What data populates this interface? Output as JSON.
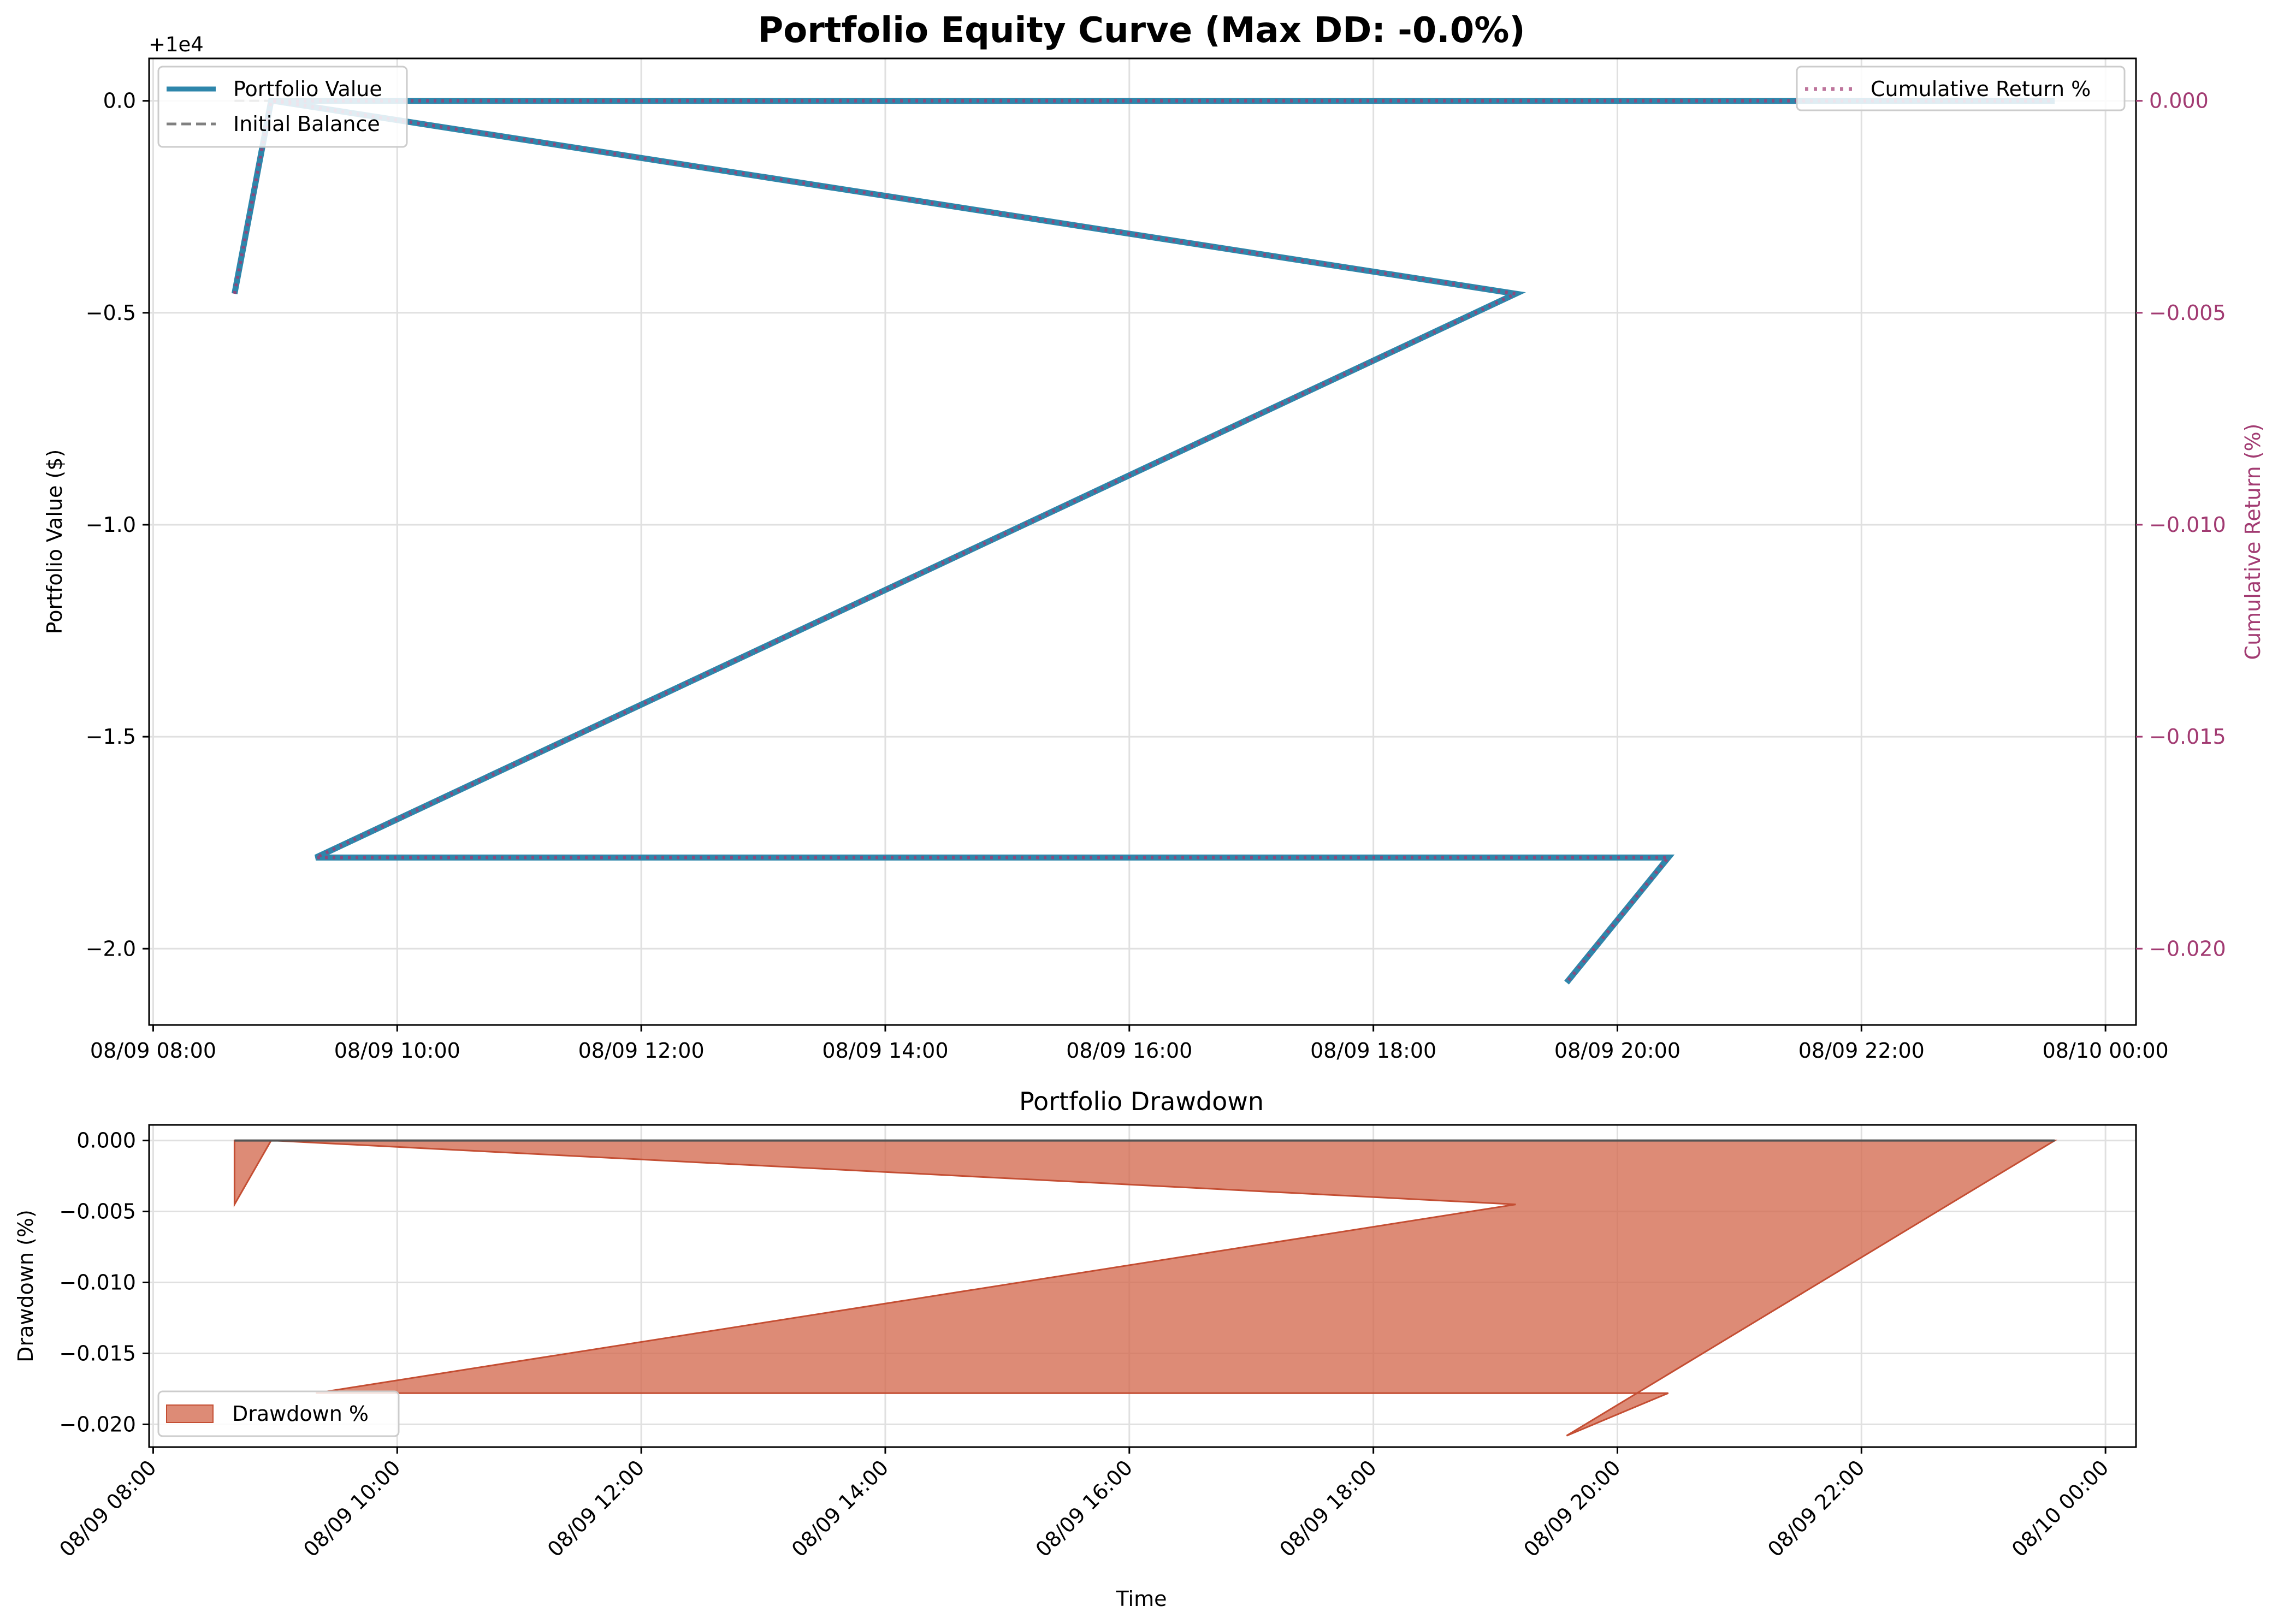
{
  "colors": {
    "portfolio": "#2E86AB",
    "cumulative_return": "#A23B72",
    "initial_balance": "#808080",
    "drawdown_fill": "#D46A4F",
    "grid": "#E0E0E0",
    "axis": "#000000"
  },
  "chart_data": [
    {
      "type": "line",
      "title": "Portfolio Equity Curve (Max DD: -0.0%)",
      "ylabel": "Portfolio Value ($)",
      "y2label": "Cumulative Return (%)",
      "offset_label": "+1e4",
      "ylim": [
        -2.18,
        0.1
      ],
      "y2lim": [
        -0.0218,
        0.001
      ],
      "xlim": [
        "08/09 07:58",
        "08/10 00:15"
      ],
      "x_tick_labels": [
        "08/09 08:00",
        "08/09 10:00",
        "08/09 12:00",
        "08/09 14:00",
        "08/09 16:00",
        "08/09 18:00",
        "08/09 20:00",
        "08/09 22:00",
        "08/10 00:00"
      ],
      "x_ticks": [
        "08/09 08:00",
        "08/09 10:00",
        "08/09 12:00",
        "08/09 14:00",
        "08/09 16:00",
        "08/09 18:00",
        "08/09 20:00",
        "08/09 22:00",
        "08/10 00:00"
      ],
      "y_tick_labels": [
        "0.0",
        "−0.5",
        "−1.0",
        "−1.5",
        "−2.0"
      ],
      "y_ticks": [
        0.0,
        -0.5,
        -1.0,
        -1.5,
        -2.0
      ],
      "y2_tick_labels": [
        "0.000",
        "−0.005",
        "−0.010",
        "−0.015",
        "−0.020"
      ],
      "y2_ticks": [
        0.0,
        -0.005,
        -0.01,
        -0.015,
        -0.02
      ],
      "grid": true,
      "legend_left": [
        "Portfolio Value",
        "Initial Balance"
      ],
      "legend_right": [
        "Cumulative Return %"
      ],
      "legend_placement": [
        "top-left",
        "top-right"
      ],
      "series": [
        {
          "name": "Portfolio Value",
          "style": "solid",
          "x": [
            "08/09 08:40",
            "08/09 08:58",
            "08/09 08:59",
            "08/09 19:10",
            "08/09 09:20",
            "08/09 20:25",
            "08/09 19:35"
          ],
          "y": [
            -0.455,
            0.0,
            0.0,
            -0.455,
            -1.785,
            -1.785,
            -2.08
          ]
        },
        {
          "name": "Portfolio Value",
          "style": "solid",
          "x": [
            "08/09 08:59",
            "08/09 23:35"
          ],
          "y": [
            0.0,
            0.0
          ]
        },
        {
          "name": "Cumulative Return %",
          "style": "dotted",
          "x": [
            "08/09 08:40",
            "08/09 08:58",
            "08/09 08:59",
            "08/09 19:10",
            "08/09 09:20",
            "08/09 20:25",
            "08/09 19:35"
          ],
          "y": [
            -0.00455,
            0.0,
            0.0,
            -0.00455,
            -0.01785,
            -0.01785,
            -0.0208
          ]
        },
        {
          "name": "Cumulative Return %",
          "style": "dotted",
          "x": [
            "08/09 08:59",
            "08/09 23:35"
          ],
          "y": [
            0.0,
            0.0
          ]
        },
        {
          "name": "Initial Balance",
          "style": "dashed",
          "x": [
            "08/09 08:40",
            "08/09 23:35"
          ],
          "y": [
            0.0,
            0.0
          ]
        }
      ]
    },
    {
      "type": "area",
      "title": "Portfolio Drawdown",
      "xlabel": "Time",
      "ylabel": "Drawdown (%)",
      "ylim": [
        -0.0216,
        0.0011
      ],
      "xlim": [
        "08/09 07:58",
        "08/10 00:15"
      ],
      "x_tick_labels": [
        "08/09 08:00",
        "08/09 10:00",
        "08/09 12:00",
        "08/09 14:00",
        "08/09 16:00",
        "08/09 18:00",
        "08/09 20:00",
        "08/09 22:00",
        "08/10 00:00"
      ],
      "x_ticks": [
        "08/09 08:00",
        "08/09 10:00",
        "08/09 12:00",
        "08/09 14:00",
        "08/09 16:00",
        "08/09 18:00",
        "08/09 20:00",
        "08/09 22:00",
        "08/10 00:00"
      ],
      "y_tick_labels": [
        "0.000",
        "−0.005",
        "−0.010",
        "−0.015",
        "−0.020"
      ],
      "y_ticks": [
        0.0,
        -0.005,
        -0.01,
        -0.015,
        -0.02
      ],
      "grid": true,
      "legend": [
        "Drawdown %"
      ],
      "legend_placement": "bottom-left",
      "series": [
        {
          "name": "Drawdown %",
          "x": [
            "08/09 08:40",
            "08/09 08:58",
            "08/09 08:59",
            "08/09 19:10",
            "08/09 09:20",
            "08/09 20:25",
            "08/09 19:35",
            "08/09 23:35"
          ],
          "y": [
            -0.0045,
            0.0,
            0.0,
            -0.0045,
            -0.0178,
            -0.0178,
            -0.0208,
            0.0
          ]
        }
      ],
      "zero_line": 0.0
    }
  ]
}
